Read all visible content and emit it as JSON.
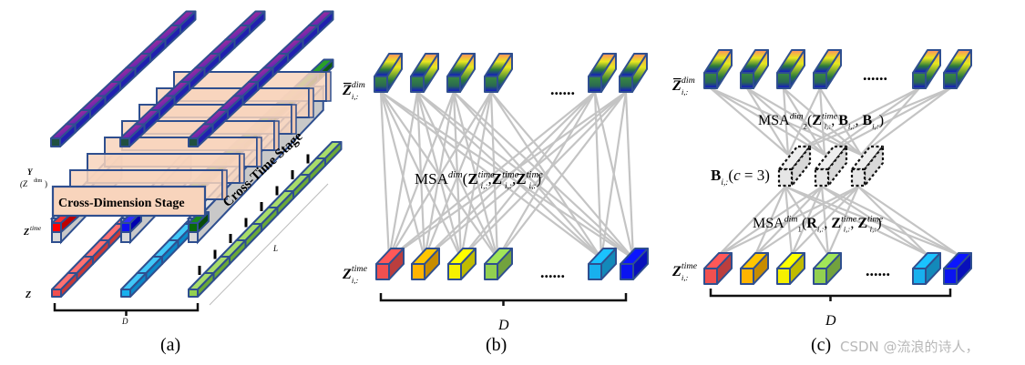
{
  "colors": {
    "box_border": "#2f4f8f",
    "line": "#c4c4c4",
    "stage_fill": "#f8d4bc",
    "gray_bar": "#c8c8c8",
    "time_colors": [
      "#f05050",
      "#ffb400",
      "#f6f000",
      "#92d050",
      "#18b0ee",
      "#0a14f0"
    ],
    "dim_gradient": [
      "#ff8c60",
      "#e8e820",
      "#2a7a3a",
      "#1010d0"
    ]
  },
  "panel_a": {
    "label": "(a)",
    "y_label": "Y",
    "zdim_label": "(Z",
    "zdim_sup": "dim",
    "zdim_close": ")",
    "ztime_label": "Z",
    "ztime_sup": "time",
    "z_label": "Z",
    "cross_dimension": "Cross-Dimension Stage",
    "cross_time": "Cross-Time Stage",
    "d_label": "D",
    "l_label": "L"
  },
  "panel_b": {
    "label": "(b)",
    "top_label": {
      "base": "Z",
      "sup": "dim",
      "sub": "i,:"
    },
    "bottom_label": {
      "base": "Z",
      "sup": "time",
      "sub": "i,:"
    },
    "ellipsis": "......",
    "d_label": "D",
    "formula": [
      {
        "t": "MSA"
      },
      {
        "t": "dim",
        "s": "sup",
        "i": true
      },
      {
        "t": "("
      },
      {
        "t": "Z",
        "b": true
      },
      {
        "t": "time",
        "s": "sup",
        "i": true
      },
      {
        "t": "i,:",
        "s": "sub",
        "i": true
      },
      {
        "t": ","
      },
      {
        "t": "Z",
        "b": true
      },
      {
        "t": "time",
        "s": "sup",
        "i": true
      },
      {
        "t": "i,:",
        "s": "sub",
        "i": true
      },
      {
        "t": ","
      },
      {
        "t": "Z",
        "b": true
      },
      {
        "t": "time",
        "s": "sup",
        "i": true
      },
      {
        "t": "i,:",
        "s": "sub",
        "i": true
      },
      {
        "t": ")"
      }
    ]
  },
  "panel_c": {
    "label": "(c)",
    "top_label": {
      "base": "Z",
      "sup": "dim",
      "sub": "i,:"
    },
    "bottom_label": {
      "base": "Z",
      "sup": "time",
      "sub": "i,:"
    },
    "ellipsis": "......",
    "d_label": "D",
    "router_label": [
      {
        "t": "B",
        "b": true
      },
      {
        "t": "i,:",
        "s": "sub",
        "i": true
      },
      {
        "t": "("
      },
      {
        "t": "c",
        "i": true
      },
      {
        "t": " = 3)"
      }
    ],
    "formula_top": [
      {
        "t": "MSA"
      },
      {
        "t": "dim",
        "s": "sup",
        "i": true
      },
      {
        "t": "2",
        "s": "sub2"
      },
      {
        "t": "("
      },
      {
        "t": "Z",
        "b": true
      },
      {
        "t": "time",
        "s": "sup",
        "i": true
      },
      {
        "t": "i,:",
        "s": "sub",
        "i": true
      },
      {
        "t": ", "
      },
      {
        "t": "B",
        "b": true
      },
      {
        "t": "i,:",
        "s": "sub",
        "i": true
      },
      {
        "t": ", "
      },
      {
        "t": "B",
        "b": true
      },
      {
        "t": "i,:",
        "s": "sub",
        "i": true
      },
      {
        "t": ")"
      }
    ],
    "formula_bottom": [
      {
        "t": "MSA"
      },
      {
        "t": "dim",
        "s": "sup",
        "i": true
      },
      {
        "t": "1",
        "s": "sub2"
      },
      {
        "t": "("
      },
      {
        "t": "R",
        "b": true
      },
      {
        "t": "i,:",
        "s": "sub",
        "i": true
      },
      {
        "t": ", "
      },
      {
        "t": "Z",
        "b": true
      },
      {
        "t": "time",
        "s": "sup",
        "i": true
      },
      {
        "t": "i,:",
        "s": "sub",
        "i": true
      },
      {
        "t": ", "
      },
      {
        "t": "Z",
        "b": true
      },
      {
        "t": "time",
        "s": "sup",
        "i": true
      },
      {
        "t": "i,:",
        "s": "sub",
        "i": true
      },
      {
        "t": ")"
      }
    ]
  },
  "watermark": "CSDN @流浪的诗人，"
}
